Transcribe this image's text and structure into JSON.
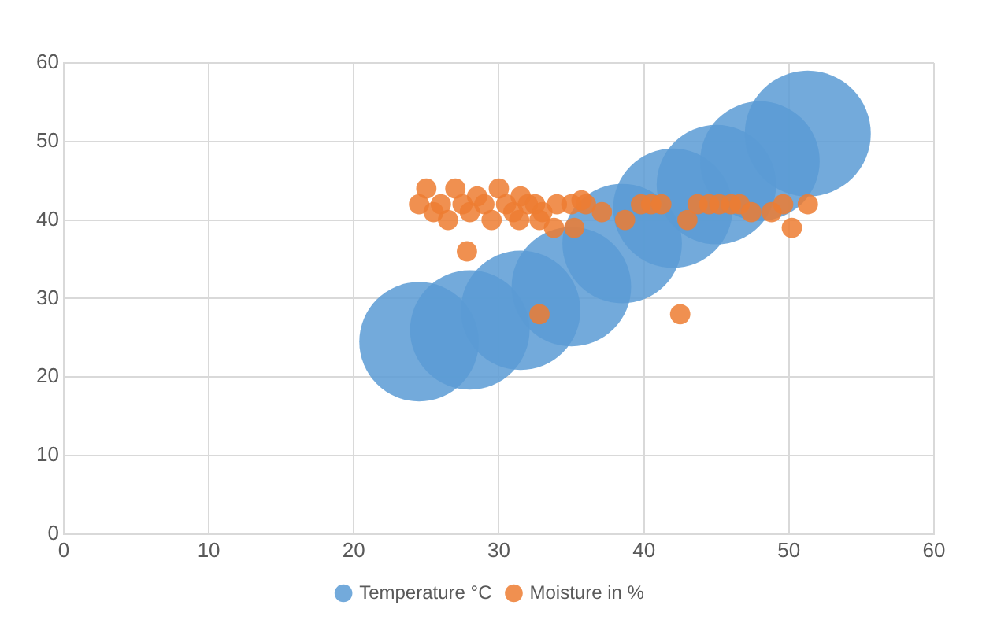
{
  "chart_data": {
    "type": "bubble",
    "xlim": [
      0,
      60
    ],
    "ylim": [
      0,
      60
    ],
    "xticks": [
      0,
      10,
      20,
      30,
      40,
      50,
      60
    ],
    "yticks": [
      0,
      10,
      20,
      30,
      40,
      50,
      60
    ],
    "grid": true,
    "legend": "bottom",
    "series": [
      {
        "name": "Temperature °C",
        "color": "#5b9bd5",
        "x": [
          24.5,
          28,
          31.5,
          35,
          38.5,
          42,
          45,
          48,
          51.3
        ],
        "values": [
          24.5,
          26,
          28.5,
          31.5,
          37,
          41.5,
          44.5,
          47.5,
          51
        ],
        "sizes": [
          0.9,
          0.9,
          0.9,
          0.9,
          0.9,
          0.9,
          0.9,
          0.9,
          1
        ]
      },
      {
        "name": "Moisture in %",
        "color": "#ed7d31",
        "x": [
          24.5,
          25,
          25.5,
          26,
          26.5,
          27,
          27.5,
          28,
          28.5,
          29,
          29.5,
          30,
          30.5,
          31,
          31.5,
          32,
          32.5,
          33,
          34,
          35,
          36,
          31.4,
          32.8,
          33.8,
          35.2,
          35.7,
          37.1,
          38.7,
          39.8,
          40.5,
          41.2,
          43,
          43.7,
          44.5,
          45.2,
          46,
          46.6,
          47.4,
          48.8,
          49.6,
          50.2,
          51.3,
          27.8,
          32.8,
          42.5
        ],
        "values": [
          42,
          44,
          41,
          42,
          40,
          44,
          42,
          41,
          43,
          42,
          40,
          44,
          42,
          41,
          43,
          42,
          42,
          41,
          42,
          42,
          42,
          40,
          40,
          39,
          39,
          42.5,
          41,
          40,
          42,
          42,
          42,
          40,
          42,
          42,
          42,
          42,
          42,
          41,
          41,
          42,
          39,
          42,
          36,
          28,
          28
        ],
        "sizes": [
          0.026,
          0.026,
          0.026,
          0.026,
          0.026,
          0.026,
          0.026,
          0.026,
          0.026,
          0.026,
          0.026,
          0.026,
          0.026,
          0.026,
          0.026,
          0.026,
          0.026,
          0.026,
          0.026,
          0.026,
          0.026,
          0.026,
          0.026,
          0.026,
          0.026,
          0.026,
          0.026,
          0.026,
          0.026,
          0.026,
          0.026,
          0.026,
          0.026,
          0.026,
          0.026,
          0.026,
          0.026,
          0.026,
          0.026,
          0.026,
          0.026,
          0.026,
          0.026,
          0.026,
          0.026
        ]
      }
    ]
  }
}
